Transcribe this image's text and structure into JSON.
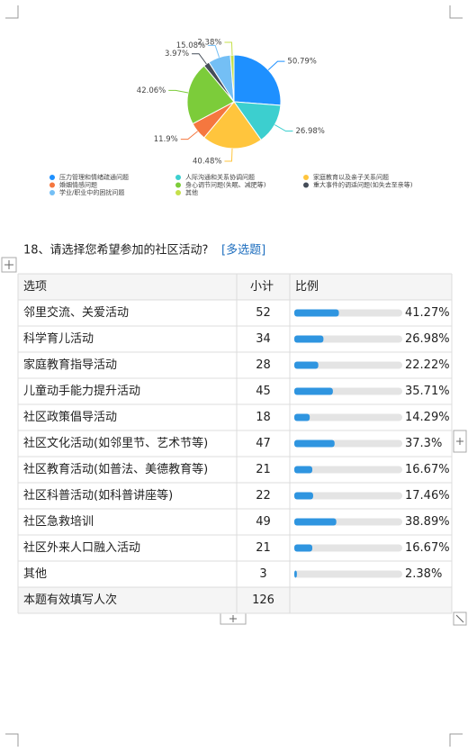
{
  "chart_data": {
    "type": "pie",
    "categories": [
      "压力管理和情绪疏通问题",
      "人际沟通和关系协调问题",
      "家庭教育以及亲子关系问题",
      "婚姻情感问题",
      "身心调节问题(失眠、减肥等)",
      "重大事件的调适问题(如失去至亲等)",
      "学业/职业中的困扰问题",
      "其他"
    ],
    "values": [
      50.79,
      26.98,
      40.48,
      11.9,
      42.06,
      3.97,
      15.08,
      2.38
    ],
    "value_labels": [
      "50.79%",
      "26.98%",
      "40.48%",
      "11.9%",
      "42.06%",
      "3.97%",
      "15.08%",
      "2.38%"
    ],
    "colors": [
      "#1e90ff",
      "#3ccfcf",
      "#ffc53d",
      "#f5773f",
      "#7ccc3a",
      "#454d58",
      "#74bff5",
      "#c5e04a"
    ]
  },
  "question": {
    "title": "18、请选择您希望参加的社区活动?",
    "tag": "[多选题]"
  },
  "table": {
    "header": [
      "选项",
      "小计",
      "比例"
    ],
    "rows": [
      {
        "option": "邻里交流、关爱活动",
        "count": 52,
        "percent": 41.27,
        "percent_label": "41.27%"
      },
      {
        "option": "科学育儿活动",
        "count": 34,
        "percent": 26.98,
        "percent_label": "26.98%"
      },
      {
        "option": "家庭教育指导活动",
        "count": 28,
        "percent": 22.22,
        "percent_label": "22.22%"
      },
      {
        "option": "儿童动手能力提升活动",
        "count": 45,
        "percent": 35.71,
        "percent_label": "35.71%"
      },
      {
        "option": "社区政策倡导活动",
        "count": 18,
        "percent": 14.29,
        "percent_label": "14.29%"
      },
      {
        "option": "社区文化活动(如邻里节、艺术节等)",
        "count": 47,
        "percent": 37.3,
        "percent_label": "37.3%"
      },
      {
        "option": "社区教育活动(如普法、美德教育等)",
        "count": 21,
        "percent": 16.67,
        "percent_label": "16.67%"
      },
      {
        "option": "社区科普活动(如科普讲座等)",
        "count": 22,
        "percent": 17.46,
        "percent_label": "17.46%"
      },
      {
        "option": "社区急救培训",
        "count": 49,
        "percent": 38.89,
        "percent_label": "38.89%"
      },
      {
        "option": "社区外来人口融入活动",
        "count": 21,
        "percent": 16.67,
        "percent_label": "16.67%"
      },
      {
        "option": "其他",
        "count": 3,
        "percent": 2.38,
        "percent_label": "2.38%"
      }
    ],
    "total": {
      "label": "本题有效填写人次",
      "count": 126
    }
  }
}
